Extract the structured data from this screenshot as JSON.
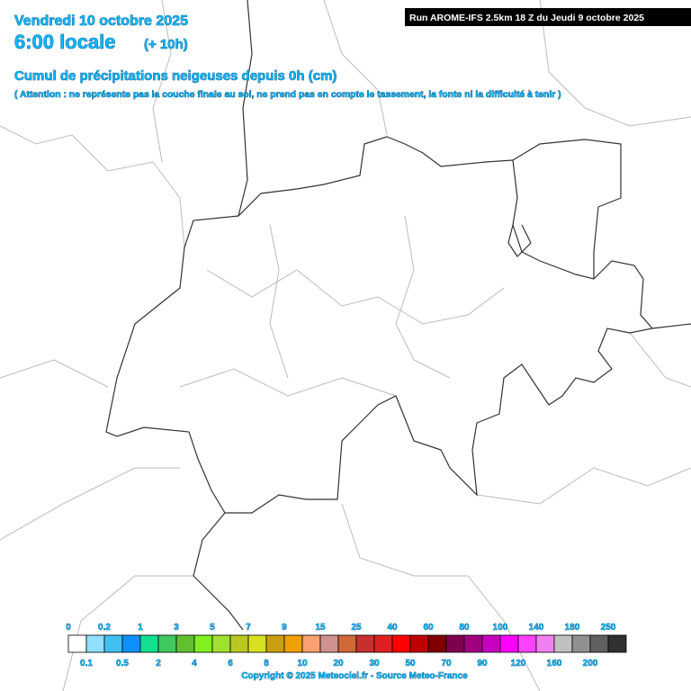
{
  "header": {
    "date": "Vendredi 10 octobre 2025",
    "time": "6:00 locale",
    "offset": "(+ 10h)",
    "run": "Run AROME-IFS 2.5km 18 Z du Jeudi 9 octobre 2025",
    "title": "Cumul de précipitations neigeuses depuis 0h (cm)",
    "warning": "( Attention : ne représente pas la couche finale au sol, ne prend pas en compte le tassement, la fonte ni la difficulté à tenir )"
  },
  "legend": {
    "thresholds": [
      0,
      0.1,
      0.2,
      0.5,
      1,
      2,
      3,
      4,
      5,
      6,
      7,
      8,
      9,
      10,
      15,
      20,
      25,
      30,
      40,
      50,
      60,
      70,
      80,
      90,
      100,
      120,
      140,
      160,
      180,
      200,
      250
    ],
    "colors": [
      "#ffffff",
      "#90e0ff",
      "#40c0f0",
      "#1090ff",
      "#10e090",
      "#40c860",
      "#60c030",
      "#80f020",
      "#a0e030",
      "#b8c820",
      "#d8e020",
      "#c8a010",
      "#f0a000",
      "#f8a070",
      "#d09090",
      "#d06838",
      "#c83030",
      "#e02020",
      "#ff0000",
      "#c00000",
      "#800000",
      "#800050",
      "#a00080",
      "#c800c0",
      "#ff00ff",
      "#ff40ff",
      "#f080f0",
      "#c0c0c0",
      "#909090",
      "#606060",
      "#303030"
    ]
  },
  "footer": {
    "copyright": "Copyright © 2025 Meteociel.fr - Source Meteo-France"
  }
}
